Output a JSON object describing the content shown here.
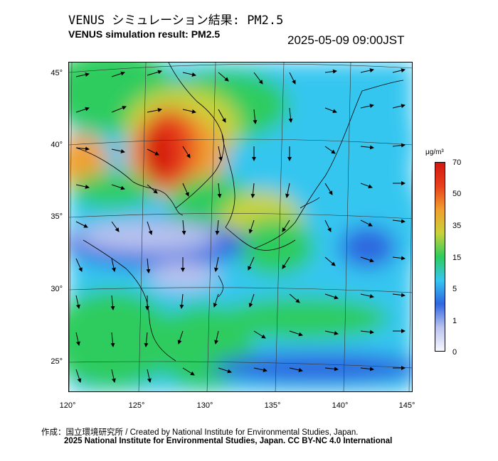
{
  "title_ja": "VENUS シミュレーション結果: PM2.5",
  "title_en": "VENUS simulation result: PM2.5",
  "timestamp": "2025-05-09 09:00JST",
  "map": {
    "lat_ticks": [
      "45°",
      "40°",
      "35°",
      "30°",
      "25°"
    ],
    "lon_ticks": [
      "120°",
      "125°",
      "130°",
      "135°",
      "140°",
      "145°"
    ]
  },
  "colorbar": {
    "unit": "μg/m³",
    "ticks": [
      "70",
      "50",
      "35",
      "15",
      "5",
      "1",
      "0"
    ],
    "colors": [
      "#f7f7ff",
      "#b9c3ee",
      "#2f66e0",
      "#35c6f0",
      "#2ecc5e",
      "#c8d23a",
      "#f0a030",
      "#e8401c",
      "#d21810"
    ]
  },
  "credits": {
    "line1": "作成：国立環境研究所 / Created by National Institute for Environmental Studies, Japan.",
    "line2": "2025 National Institute for Environmental Studies, Japan. CC BY-NC 4.0 International"
  }
}
